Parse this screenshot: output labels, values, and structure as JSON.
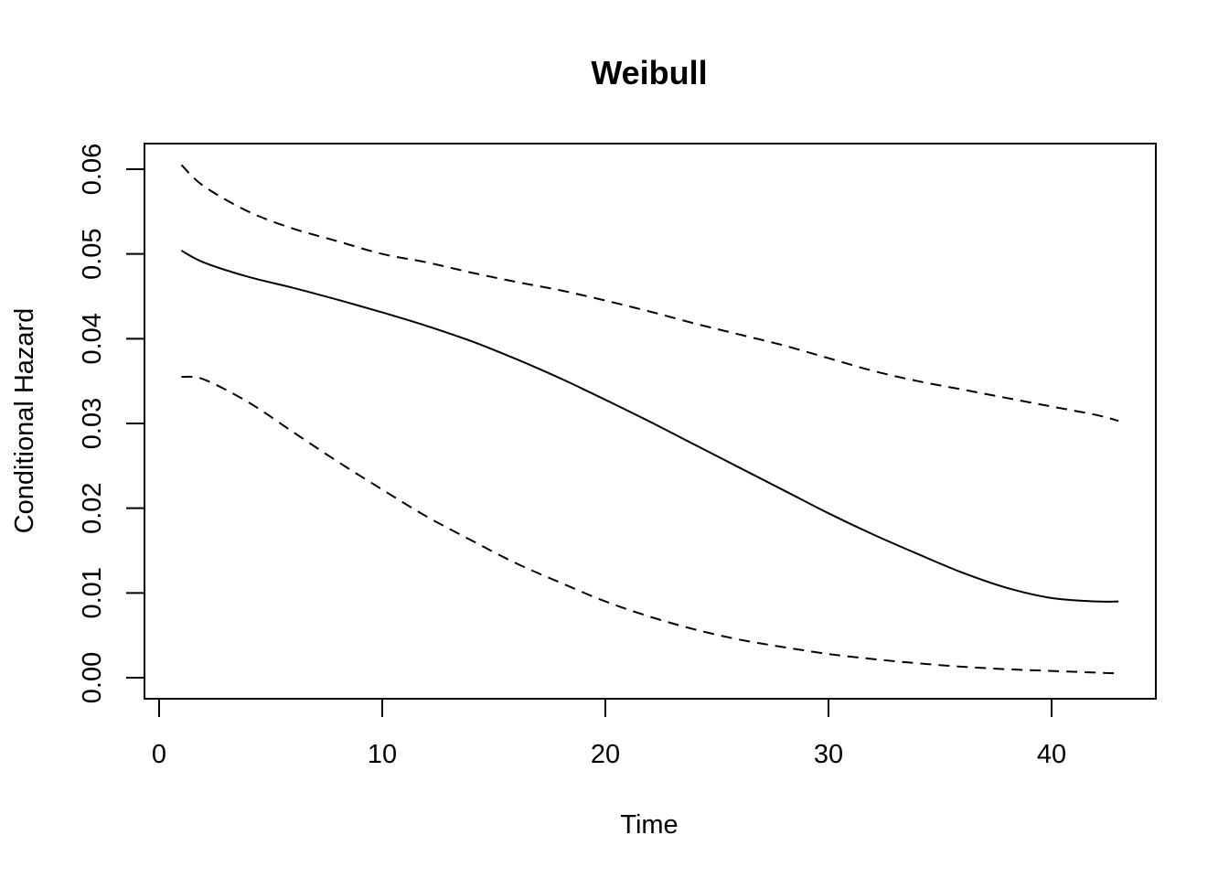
{
  "chart_data": {
    "type": "line",
    "title": "Weibull",
    "xlabel": "Time",
    "ylabel": "Conditional Hazard",
    "xlim": [
      0,
      45
    ],
    "ylim": [
      0.0,
      0.06
    ],
    "xticks": [
      0,
      10,
      20,
      30,
      40
    ],
    "xtick_labels": [
      "0",
      "10",
      "20",
      "30",
      "40"
    ],
    "yticks": [
      0.0,
      0.01,
      0.02,
      0.03,
      0.04,
      0.05,
      0.06
    ],
    "ytick_labels": [
      "0.00",
      "0.01",
      "0.02",
      "0.03",
      "0.04",
      "0.05",
      "0.06"
    ],
    "grid": false,
    "series": [
      {
        "style": "dashed",
        "x": [
          1,
          2,
          4,
          6,
          8,
          10,
          12,
          14,
          16,
          18,
          20,
          22,
          24,
          26,
          28,
          30,
          32,
          34,
          36,
          38,
          40,
          42,
          43
        ],
        "values": [
          0.0605,
          0.058,
          0.055,
          0.053,
          0.0515,
          0.05,
          0.049,
          0.0478,
          0.0467,
          0.0457,
          0.0445,
          0.0432,
          0.0418,
          0.0405,
          0.0392,
          0.0377,
          0.0362,
          0.035,
          0.034,
          0.033,
          0.032,
          0.031,
          0.0303
        ]
      },
      {
        "style": "solid",
        "x": [
          1,
          2,
          4,
          6,
          8,
          10,
          12,
          14,
          16,
          18,
          20,
          22,
          24,
          26,
          28,
          30,
          32,
          34,
          36,
          38,
          40,
          42,
          43
        ],
        "values": [
          0.0504,
          0.049,
          0.0473,
          0.046,
          0.0446,
          0.0431,
          0.0415,
          0.0397,
          0.0376,
          0.0353,
          0.0328,
          0.0302,
          0.0275,
          0.0248,
          0.0221,
          0.0194,
          0.0169,
          0.0146,
          0.0124,
          0.0106,
          0.0094,
          0.009,
          0.009
        ]
      },
      {
        "style": "dashed",
        "x": [
          1,
          2,
          4,
          6,
          8,
          10,
          12,
          14,
          16,
          18,
          20,
          22,
          24,
          26,
          28,
          30,
          32,
          34,
          36,
          38,
          40,
          42,
          43
        ],
        "values": [
          0.0355,
          0.0352,
          0.0325,
          0.029,
          0.0255,
          0.0222,
          0.019,
          0.0162,
          0.0135,
          0.0112,
          0.009,
          0.0072,
          0.0057,
          0.0045,
          0.0036,
          0.0028,
          0.0022,
          0.0017,
          0.0013,
          0.001,
          0.0008,
          0.0006,
          0.0005
        ]
      }
    ]
  }
}
